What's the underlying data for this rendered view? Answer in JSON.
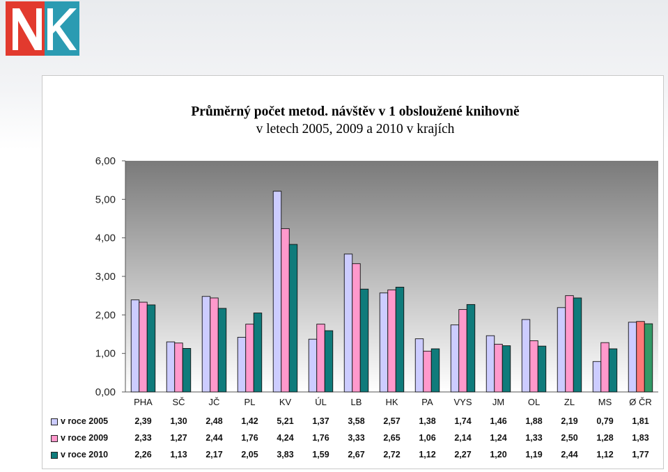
{
  "logo": {
    "text": "NK"
  },
  "chart_data": {
    "type": "bar",
    "title_line1": "Průměrný počet metod. návštěv v 1 obsloužené knihovně",
    "title_line2": "v letech 2005, 2009 a 2010 v krajích",
    "categories": [
      "PHA",
      "SČ",
      "JČ",
      "PL",
      "KV",
      "ÚL",
      "LB",
      "HK",
      "PA",
      "VYS",
      "JM",
      "OL",
      "ZL",
      "MS",
      "Ø ČR"
    ],
    "yticks": [
      "0,00",
      "1,00",
      "2,00",
      "3,00",
      "4,00",
      "5,00",
      "6,00"
    ],
    "ylim": [
      0,
      6
    ],
    "grid": false,
    "legend": "data-table",
    "series": [
      {
        "name": "v roce 2005",
        "color": "#ccccff",
        "values": [
          2.39,
          1.3,
          2.48,
          1.42,
          5.21,
          1.37,
          3.58,
          2.57,
          1.38,
          1.74,
          1.46,
          1.88,
          2.19,
          0.79,
          1.81
        ],
        "labels": [
          "2,39",
          "1,30",
          "2,48",
          "1,42",
          "5,21",
          "1,37",
          "3,58",
          "2,57",
          "1,38",
          "1,74",
          "1,46",
          "1,88",
          "2,19",
          "0,79",
          "1,81"
        ]
      },
      {
        "name": "v roce 2009",
        "color": "#ff99cc",
        "values": [
          2.33,
          1.27,
          2.44,
          1.76,
          4.24,
          1.76,
          3.33,
          2.65,
          1.06,
          2.14,
          1.24,
          1.33,
          2.5,
          1.28,
          1.83
        ],
        "labels": [
          "2,33",
          "1,27",
          "2,44",
          "1,76",
          "4,24",
          "1,76",
          "3,33",
          "2,65",
          "1,06",
          "2,14",
          "1,24",
          "1,33",
          "2,50",
          "1,28",
          "1,83"
        ]
      },
      {
        "name": "v roce 2010",
        "color": "#0f7b7b",
        "values": [
          2.26,
          1.13,
          2.17,
          2.05,
          3.83,
          1.59,
          2.67,
          2.72,
          1.12,
          2.27,
          1.2,
          1.19,
          2.44,
          1.12,
          1.77
        ],
        "labels": [
          "2,26",
          "1,13",
          "2,17",
          "2,05",
          "3,83",
          "1,59",
          "2,67",
          "2,72",
          "1,12",
          "2,27",
          "1,20",
          "1,19",
          "2,44",
          "1,12",
          "1,77"
        ]
      }
    ],
    "last_category_colors": [
      "#ccccff",
      "#ff7777",
      "#339966"
    ]
  }
}
